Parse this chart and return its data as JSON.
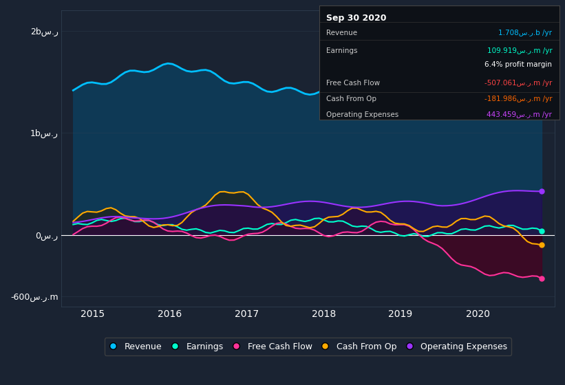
{
  "bg_color": "#1a2332",
  "plot_bg_color": "#1a2332",
  "title_date": "Sep 30 2020",
  "info_box": {
    "bg_color": "#0d1117",
    "border_color": "#333333",
    "rows": [
      {
        "label": "Revenue",
        "value": "1.708س.ر.b /yr",
        "color": "#00bfff"
      },
      {
        "label": "Earnings",
        "value": "109.919س.ر.m /yr",
        "color": "#00ffcc"
      },
      {
        "label": "",
        "value": "6.4% profit margin",
        "color": "#ffffff"
      },
      {
        "label": "Free Cash Flow",
        "value": "-507.061س.ر.m /yr",
        "color": "#ff4444"
      },
      {
        "label": "Cash From Op",
        "value": "-181.986س.ر.m /yr",
        "color": "#ff6600"
      },
      {
        "label": "Operating Expenses",
        "value": "443.459س.ر.m /yr",
        "color": "#cc44ff"
      }
    ]
  },
  "x_ticks": [
    2015,
    2016,
    2017,
    2018,
    2019,
    2020
  ],
  "y_min": -700000000,
  "y_max": 2200000000,
  "revenue_color": "#00bfff",
  "earnings_color": "#00ffcc",
  "fcf_color": "#ff3399",
  "cashop_color": "#ffaa00",
  "opex_color": "#9933ff",
  "legend_labels": [
    "Revenue",
    "Earnings",
    "Free Cash Flow",
    "Cash From Op",
    "Operating Expenses"
  ],
  "legend_colors": [
    "#00bfff",
    "#00ffcc",
    "#ff3399",
    "#ffaa00",
    "#9933ff"
  ]
}
